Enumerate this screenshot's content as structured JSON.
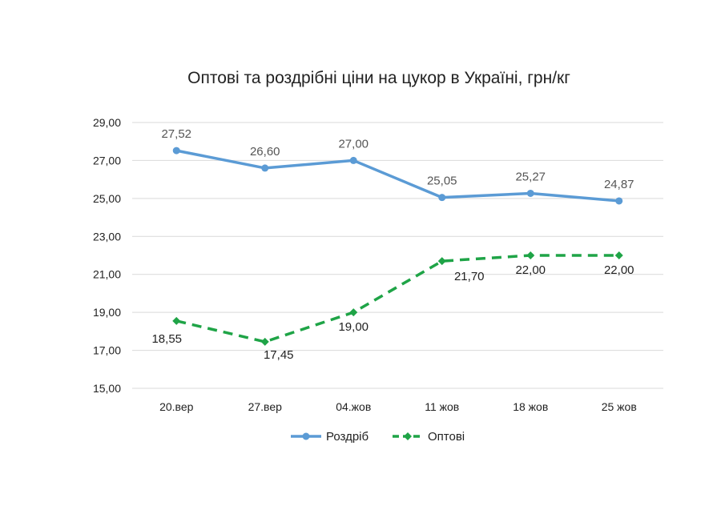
{
  "chart_data": {
    "type": "line",
    "title": "Оптові та роздрібні ціни на цукор в Україні, грн/кг",
    "categories": [
      "20.вер",
      "27.вер",
      "04.жов",
      "11 жов",
      "18 жов",
      "25 жов"
    ],
    "ylim": [
      15,
      29
    ],
    "yticks": [
      "15,00",
      "17,00",
      "19,00",
      "21,00",
      "23,00",
      "25,00",
      "27,00",
      "29,00"
    ],
    "grid": true,
    "legend_position": "bottom",
    "series": [
      {
        "name": "Роздріб",
        "color": "#5b9bd5",
        "style": "solid",
        "marker": "circle",
        "values": [
          27.52,
          26.6,
          27.0,
          25.05,
          25.27,
          24.87
        ],
        "labels": [
          "27,52",
          "26,60",
          "27,00",
          "25,05",
          "25,27",
          "24,87"
        ]
      },
      {
        "name": "Оптові",
        "color": "#1fa447",
        "style": "dashed",
        "marker": "diamond",
        "values": [
          18.55,
          17.45,
          19.0,
          21.7,
          22.0,
          22.0
        ],
        "labels": [
          "18,55",
          "17,45",
          "19,00",
          "21,70",
          "22,00",
          "22,00"
        ]
      }
    ]
  }
}
